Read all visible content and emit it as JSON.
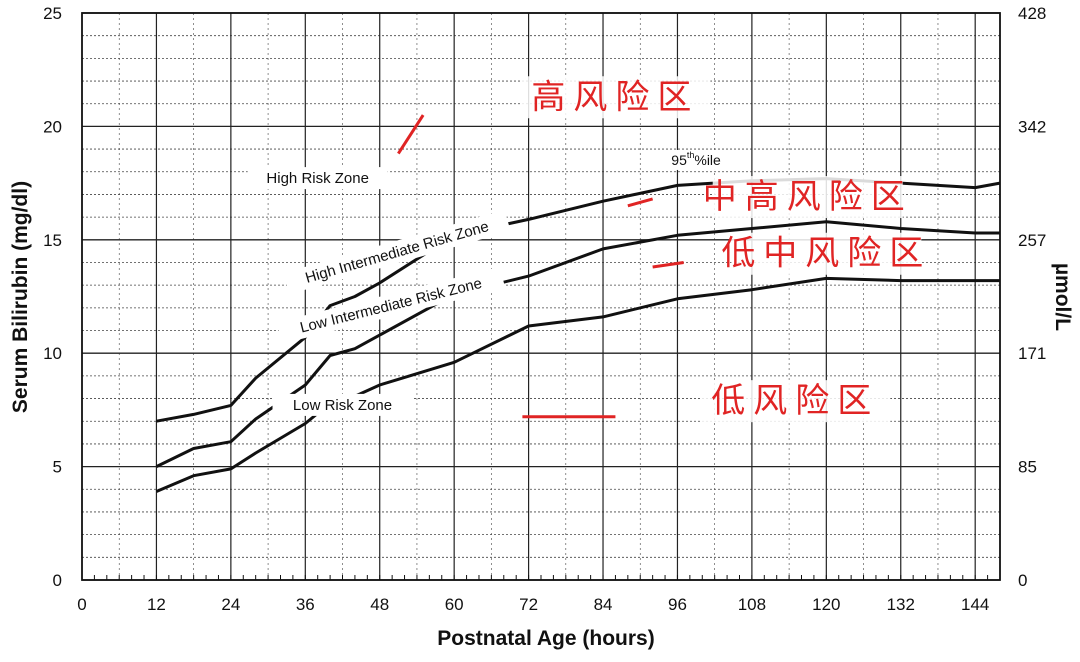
{
  "chart_data": {
    "type": "line",
    "xlabel": "Postnatal Age (hours)",
    "ylabel": "Serum Bilirubin (mg/dl)",
    "y2label": "µmol/L",
    "xlim": [
      0,
      148
    ],
    "ylim": [
      0,
      25
    ],
    "x_ticks": [
      0,
      12,
      24,
      36,
      48,
      60,
      72,
      84,
      96,
      108,
      120,
      132,
      144
    ],
    "y_ticks": [
      0,
      5,
      10,
      15,
      20,
      25
    ],
    "y2_ticks": [
      {
        "value": 0,
        "label": "0"
      },
      {
        "value": 5,
        "label": "85"
      },
      {
        "value": 10,
        "label": "171"
      },
      {
        "value": 15,
        "label": "257"
      },
      {
        "value": 20,
        "label": "342"
      },
      {
        "value": 25,
        "label": "428"
      }
    ],
    "grid": true,
    "series": [
      {
        "name": "95th %ile",
        "points": [
          [
            12,
            7.0
          ],
          [
            18,
            7.3
          ],
          [
            24,
            7.7
          ],
          [
            28,
            8.9
          ],
          [
            36,
            10.7
          ],
          [
            40,
            12.1
          ],
          [
            44,
            12.5
          ],
          [
            48,
            13.1
          ],
          [
            60,
            15.2
          ],
          [
            72,
            15.9
          ],
          [
            84,
            16.7
          ],
          [
            96,
            17.4
          ],
          [
            108,
            17.6
          ],
          [
            120,
            17.7
          ],
          [
            132,
            17.5
          ],
          [
            144,
            17.3
          ],
          [
            148,
            17.5
          ]
        ]
      },
      {
        "points": [
          [
            12,
            5.0
          ],
          [
            18,
            5.8
          ],
          [
            24,
            6.1
          ],
          [
            28,
            7.1
          ],
          [
            36,
            8.6
          ],
          [
            40,
            9.9
          ],
          [
            44,
            10.2
          ],
          [
            48,
            10.8
          ],
          [
            60,
            12.6
          ],
          [
            72,
            13.4
          ],
          [
            84,
            14.6
          ],
          [
            96,
            15.2
          ],
          [
            108,
            15.5
          ],
          [
            120,
            15.8
          ],
          [
            132,
            15.5
          ],
          [
            144,
            15.3
          ],
          [
            148,
            15.3
          ]
        ]
      },
      {
        "points": [
          [
            12,
            3.9
          ],
          [
            18,
            4.6
          ],
          [
            24,
            4.9
          ],
          [
            28,
            5.6
          ],
          [
            36,
            6.9
          ],
          [
            40,
            7.8
          ],
          [
            44,
            8.1
          ],
          [
            48,
            8.6
          ],
          [
            60,
            9.6
          ],
          [
            72,
            11.2
          ],
          [
            84,
            11.6
          ],
          [
            96,
            12.4
          ],
          [
            108,
            12.8
          ],
          [
            120,
            13.3
          ],
          [
            132,
            13.2
          ],
          [
            144,
            13.2
          ],
          [
            148,
            13.2
          ]
        ]
      }
    ],
    "annotations": [
      {
        "text": "High Risk Zone",
        "x": 38,
        "y": 17.5,
        "anchor": "middle"
      },
      {
        "text": "High Intermediate Risk Zone",
        "x": 51,
        "y": 14.25,
        "anchor": "middle",
        "rotate": -16
      },
      {
        "text": "Low Intermediate Risk Zone",
        "x": 50,
        "y": 11.9,
        "anchor": "middle",
        "rotate": -14
      },
      {
        "text": "Low Risk Zone",
        "x": 42,
        "y": 7.5,
        "anchor": "middle"
      },
      {
        "text": "95",
        "sup": "th",
        "suffix": "%ile",
        "x": 99,
        "y": 18.3,
        "anchor": "middle"
      }
    ],
    "overlay_labels": [
      {
        "text": "高风险区",
        "x": 86,
        "y": 20.8,
        "leader": [
          [
            51,
            18.8
          ],
          [
            55,
            20.5
          ]
        ]
      },
      {
        "text": "中高风险区",
        "x": 117,
        "y": 16.4,
        "leader": [
          [
            88,
            16.5
          ],
          [
            92,
            16.8
          ]
        ]
      },
      {
        "text": "低中风险区",
        "x": 120,
        "y": 13.9,
        "leader": [
          [
            92,
            13.8
          ],
          [
            97,
            14.0
          ]
        ]
      },
      {
        "text": "低风险区",
        "x": 115,
        "y": 7.4,
        "leader": [
          [
            71,
            7.2
          ],
          [
            86,
            7.2
          ]
        ]
      }
    ],
    "colors": {
      "lines": "#111111",
      "grid": "#444444",
      "overlay": "#e02424"
    }
  }
}
